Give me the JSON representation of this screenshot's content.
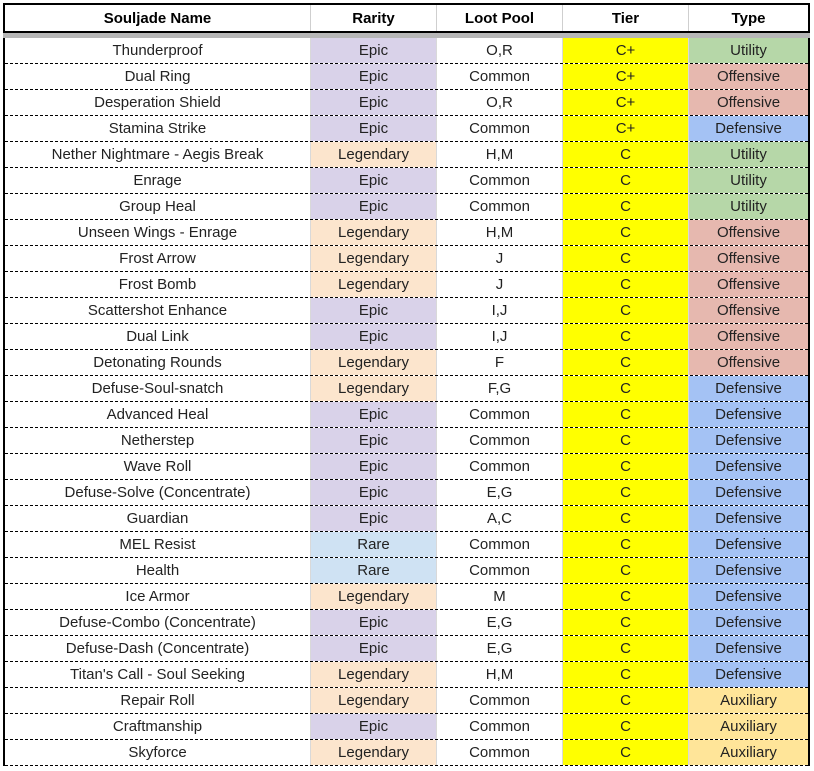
{
  "columns": {
    "name": "Souljade Name",
    "rarity": "Rarity",
    "loot_pool": "Loot Pool",
    "tier": "Tier",
    "type": "Type"
  },
  "colors": {
    "rarity": {
      "Epic": "#d9d2e9",
      "Legendary": "#fce5cd",
      "Rare": "#cfe2f3"
    },
    "tier": "#ffff00",
    "type": {
      "Utility": "#b6d7a8",
      "Offensive": "#e6b8af",
      "Defensive": "#a4c2f4",
      "Auxiliary": "#ffe599"
    }
  },
  "rows": [
    {
      "name": "Thunderproof",
      "rarity": "Epic",
      "loot_pool": "O,R",
      "tier": "C+",
      "type": "Utility"
    },
    {
      "name": "Dual Ring",
      "rarity": "Epic",
      "loot_pool": "Common",
      "tier": "C+",
      "type": "Offensive"
    },
    {
      "name": "Desperation Shield",
      "rarity": "Epic",
      "loot_pool": "O,R",
      "tier": "C+",
      "type": "Offensive"
    },
    {
      "name": "Stamina Strike",
      "rarity": "Epic",
      "loot_pool": "Common",
      "tier": "C+",
      "type": "Defensive"
    },
    {
      "name": "Nether Nightmare - Aegis Break",
      "rarity": "Legendary",
      "loot_pool": "H,M",
      "tier": "C",
      "type": "Utility"
    },
    {
      "name": "Enrage",
      "rarity": "Epic",
      "loot_pool": "Common",
      "tier": "C",
      "type": "Utility"
    },
    {
      "name": "Group Heal",
      "rarity": "Epic",
      "loot_pool": "Common",
      "tier": "C",
      "type": "Utility"
    },
    {
      "name": "Unseen Wings - Enrage",
      "rarity": "Legendary",
      "loot_pool": "H,M",
      "tier": "C",
      "type": "Offensive"
    },
    {
      "name": "Frost Arrow",
      "rarity": "Legendary",
      "loot_pool": "J",
      "tier": "C",
      "type": "Offensive"
    },
    {
      "name": "Frost Bomb",
      "rarity": "Legendary",
      "loot_pool": "J",
      "tier": "C",
      "type": "Offensive"
    },
    {
      "name": "Scattershot Enhance",
      "rarity": "Epic",
      "loot_pool": "I,J",
      "tier": "C",
      "type": "Offensive"
    },
    {
      "name": "Dual Link",
      "rarity": "Epic",
      "loot_pool": "I,J",
      "tier": "C",
      "type": "Offensive"
    },
    {
      "name": "Detonating Rounds",
      "rarity": "Legendary",
      "loot_pool": "F",
      "tier": "C",
      "type": "Offensive"
    },
    {
      "name": "Defuse-Soul-snatch",
      "rarity": "Legendary",
      "loot_pool": "F,G",
      "tier": "C",
      "type": "Defensive"
    },
    {
      "name": "Advanced Heal",
      "rarity": "Epic",
      "loot_pool": "Common",
      "tier": "C",
      "type": "Defensive"
    },
    {
      "name": "Netherstep",
      "rarity": "Epic",
      "loot_pool": "Common",
      "tier": "C",
      "type": "Defensive"
    },
    {
      "name": "Wave Roll",
      "rarity": "Epic",
      "loot_pool": "Common",
      "tier": "C",
      "type": "Defensive"
    },
    {
      "name": "Defuse-Solve (Concentrate)",
      "rarity": "Epic",
      "loot_pool": "E,G",
      "tier": "C",
      "type": "Defensive"
    },
    {
      "name": "Guardian",
      "rarity": "Epic",
      "loot_pool": "A,C",
      "tier": "C",
      "type": "Defensive"
    },
    {
      "name": "MEL Resist",
      "rarity": "Rare",
      "loot_pool": "Common",
      "tier": "C",
      "type": "Defensive"
    },
    {
      "name": "Health",
      "rarity": "Rare",
      "loot_pool": "Common",
      "tier": "C",
      "type": "Defensive"
    },
    {
      "name": "Ice Armor",
      "rarity": "Legendary",
      "loot_pool": "M",
      "tier": "C",
      "type": "Defensive"
    },
    {
      "name": "Defuse-Combo (Concentrate)",
      "rarity": "Epic",
      "loot_pool": "E,G",
      "tier": "C",
      "type": "Defensive"
    },
    {
      "name": "Defuse-Dash (Concentrate)",
      "rarity": "Epic",
      "loot_pool": "E,G",
      "tier": "C",
      "type": "Defensive"
    },
    {
      "name": "Titan's Call - Soul Seeking",
      "rarity": "Legendary",
      "loot_pool": "H,M",
      "tier": "C",
      "type": "Defensive"
    },
    {
      "name": "Repair Roll",
      "rarity": "Legendary",
      "loot_pool": "Common",
      "tier": "C",
      "type": "Auxiliary"
    },
    {
      "name": "Craftmanship",
      "rarity": "Epic",
      "loot_pool": "Common",
      "tier": "C",
      "type": "Auxiliary"
    },
    {
      "name": "Skyforce",
      "rarity": "Legendary",
      "loot_pool": "Common",
      "tier": "C",
      "type": "Auxiliary"
    }
  ]
}
